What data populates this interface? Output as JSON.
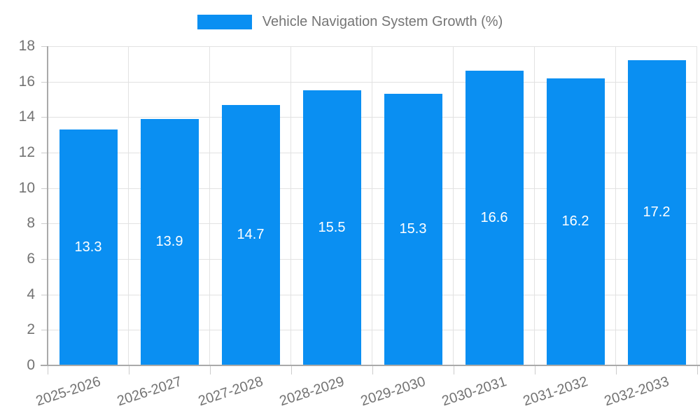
{
  "legend": {
    "label": "Vehicle Navigation System Growth (%)"
  },
  "colors": {
    "bar": "#0A8FF2",
    "grid": "#e2e2e2",
    "axis": "#a9a9a9",
    "tick": "#cccccc",
    "text": "#737373",
    "value_label": "#ffffff"
  },
  "chart_data": {
    "type": "bar",
    "title": "Vehicle Navigation System Growth (%)",
    "categories": [
      "2025-2026",
      "2026-2027",
      "2027-2028",
      "2028-2029",
      "2029-2030",
      "2030-2031",
      "2031-2032",
      "2032-2033"
    ],
    "values": [
      13.3,
      13.9,
      14.7,
      15.5,
      15.3,
      16.6,
      16.2,
      17.2
    ],
    "xlabel": "",
    "ylabel": "",
    "ylim": [
      0,
      18
    ],
    "ytick_step": 2,
    "yticks": [
      0,
      2,
      4,
      6,
      8,
      10,
      12,
      14,
      16,
      18
    ],
    "grid": true,
    "legend_position": "top",
    "bar_labels_inside": true
  }
}
